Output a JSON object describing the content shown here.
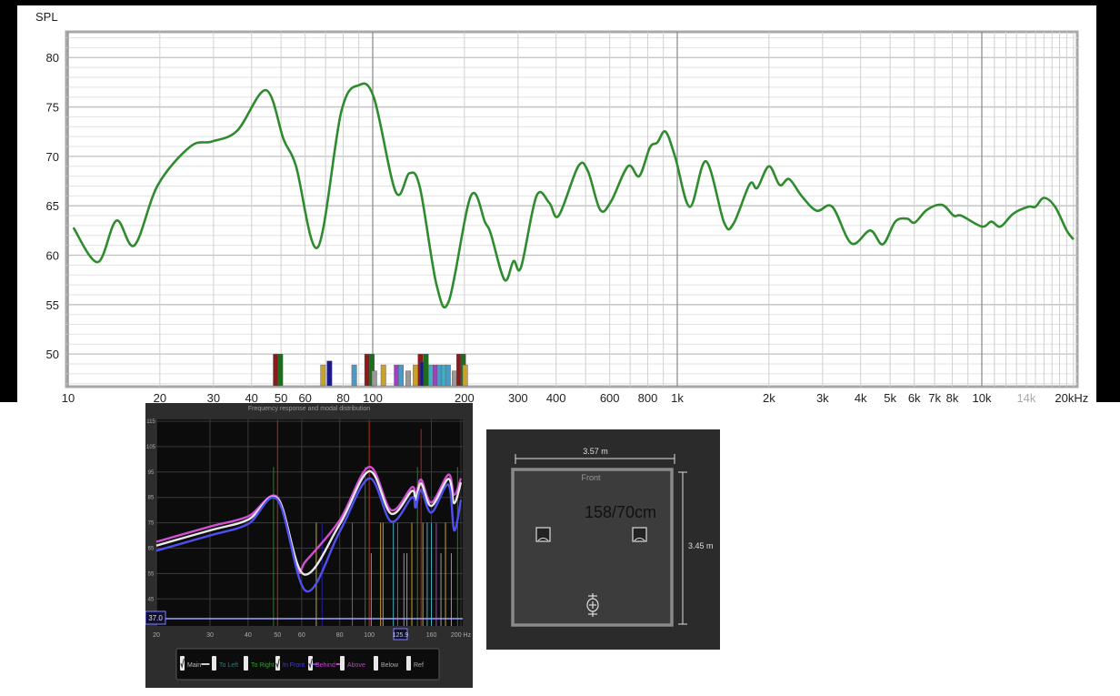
{
  "chart_data": [
    {
      "type": "line",
      "ylabel": "SPL",
      "x_scale": "log",
      "xlim": [
        10,
        20000
      ],
      "ylim": [
        46.7,
        82.6
      ],
      "grid": true,
      "y_ticks": [
        80,
        75,
        70,
        65,
        60,
        55,
        50
      ],
      "x_ticks": [
        {
          "v": 10,
          "label": "10"
        },
        {
          "v": 20,
          "label": "20"
        },
        {
          "v": 30,
          "label": "30"
        },
        {
          "v": 40,
          "label": "40"
        },
        {
          "v": 50,
          "label": "50"
        },
        {
          "v": 60,
          "label": "60"
        },
        {
          "v": 80,
          "label": "80"
        },
        {
          "v": 100,
          "label": "100"
        },
        {
          "v": 200,
          "label": "200"
        },
        {
          "v": 300,
          "label": "300"
        },
        {
          "v": 400,
          "label": "400"
        },
        {
          "v": 600,
          "label": "600"
        },
        {
          "v": 800,
          "label": "800"
        },
        {
          "v": 1000,
          "label": "1k"
        },
        {
          "v": 2000,
          "label": "2k"
        },
        {
          "v": 3000,
          "label": "3k"
        },
        {
          "v": 4000,
          "label": "4k"
        },
        {
          "v": 5000,
          "label": "5k"
        },
        {
          "v": 6000,
          "label": "6k"
        },
        {
          "v": 7000,
          "label": "7k"
        },
        {
          "v": 8000,
          "label": "8k"
        },
        {
          "v": 10000,
          "label": "10k"
        },
        {
          "v": 14000,
          "label": "14k",
          "muted": true
        },
        {
          "v": 20000,
          "label": "20kHz"
        }
      ],
      "line_color": "#2e8b2e",
      "series": [
        {
          "x": [
            10.4,
            12.5,
            14.4,
            16.5,
            19.7,
            25.2,
            29.6,
            35.9,
            44.6,
            51,
            56,
            66,
            78.8,
            90,
            101,
            119,
            132,
            143,
            162,
            178,
            210,
            234,
            244,
            271,
            290,
            307,
            345,
            380,
            408,
            473,
            509,
            558,
            605,
            689,
            750,
            813,
            860,
            915,
            985,
            1100,
            1243,
            1425,
            1530,
            1730,
            1830,
            2000,
            2170,
            2330,
            2560,
            2870,
            3230,
            3730,
            4300,
            4730,
            5200,
            5680,
            6020,
            6610,
            7400,
            8090,
            8570,
            10000,
            10750,
            11520,
            12680,
            14200,
            15000,
            16000,
            17400,
            19000,
            20000
          ],
          "y": [
            62.8,
            59.3,
            63.5,
            61,
            67.1,
            71,
            71.5,
            72.6,
            76.7,
            71.7,
            69,
            60.8,
            74.5,
            77.2,
            75.9,
            66.4,
            68.3,
            66.8,
            57,
            55.4,
            66,
            63.3,
            62.2,
            57.5,
            59.4,
            58.8,
            66,
            65.3,
            64,
            69,
            68.5,
            64.6,
            65.4,
            69,
            68,
            70.9,
            71.4,
            72.5,
            69.9,
            64.9,
            69.5,
            63.3,
            63.2,
            67.2,
            66.8,
            69,
            67.1,
            67.7,
            66,
            64.5,
            64.9,
            61.2,
            62.5,
            61.1,
            63.4,
            63.7,
            63.3,
            64.6,
            65.1,
            64,
            64,
            62.9,
            63.4,
            62.9,
            64.2,
            64.9,
            64.9,
            65.8,
            64.9,
            62.5,
            61.6
          ]
        }
      ],
      "mode_bars": [
        {
          "f": 48.1,
          "top": 50,
          "color": "#8b1a1a"
        },
        {
          "f": 49.8,
          "top": 50,
          "color": "#1f6b1f"
        },
        {
          "f": 68.8,
          "top": 48.9,
          "color": "#c8a22a"
        },
        {
          "f": 72.2,
          "top": 49.3,
          "color": "#1a1a8b"
        },
        {
          "f": 87.1,
          "top": 48.9,
          "color": "#4a9ac8"
        },
        {
          "f": 96,
          "top": 50,
          "color": "#8b1a1a"
        },
        {
          "f": 99.5,
          "top": 50,
          "color": "#1f6b1f"
        },
        {
          "f": 101.4,
          "top": 48.3,
          "color": "#999999"
        },
        {
          "f": 108.6,
          "top": 48.9,
          "color": "#c8a22a"
        },
        {
          "f": 120,
          "top": 48.9,
          "color": "#a040c0"
        },
        {
          "f": 124,
          "top": 48.9,
          "color": "#4a9ac8"
        },
        {
          "f": 131,
          "top": 48.3,
          "color": "#999999"
        },
        {
          "f": 138.5,
          "top": 48.9,
          "color": "#c8a22a"
        },
        {
          "f": 143.7,
          "top": 50,
          "color": "#8b1a1a"
        },
        {
          "f": 146,
          "top": 49.2,
          "color": "#1a1a8b"
        },
        {
          "f": 149.8,
          "top": 50,
          "color": "#1f6b1f"
        },
        {
          "f": 155.6,
          "top": 48.9,
          "color": "#40b0c0"
        },
        {
          "f": 161,
          "top": 48.9,
          "color": "#a040c0"
        },
        {
          "f": 166,
          "top": 48.9,
          "color": "#4a9ac8"
        },
        {
          "f": 172,
          "top": 48.9,
          "color": "#40b0c0"
        },
        {
          "f": 177,
          "top": 48.9,
          "color": "#4a9ac8"
        },
        {
          "f": 186,
          "top": 48.3,
          "color": "#999999"
        },
        {
          "f": 192.4,
          "top": 50,
          "color": "#8b1a1a"
        },
        {
          "f": 198.5,
          "top": 50,
          "color": "#1f6b1f"
        },
        {
          "f": 201.5,
          "top": 48.9,
          "color": "#c8a22a"
        }
      ]
    },
    {
      "type": "line",
      "title": "Frequency response and modal distribution",
      "x_scale": "log",
      "xlim": [
        20,
        200
      ],
      "ylim": [
        37.6,
        115
      ],
      "y_ticks": [
        115,
        105,
        95,
        85,
        75,
        65,
        55,
        45
      ],
      "x_ticks": [
        {
          "v": 20,
          "label": "20"
        },
        {
          "v": 30,
          "label": "30"
        },
        {
          "v": 40,
          "label": "40"
        },
        {
          "v": 50,
          "label": "50"
        },
        {
          "v": 60,
          "label": "60"
        },
        {
          "v": 80,
          "label": "80"
        },
        {
          "v": 100,
          "label": "100"
        },
        {
          "v": 160,
          "label": "160"
        },
        {
          "v": 200,
          "label": "200 Hz"
        }
      ],
      "cursor_x_label": "125.9",
      "cursor_y_label": "37.0",
      "series": [
        {
          "name": "Behind",
          "color": "#d050d0",
          "x": [
            20,
            30,
            40,
            50,
            58,
            62,
            80,
            100,
            118,
            138,
            142,
            148,
            160,
            182,
            190,
            200
          ],
          "y": [
            67.5,
            73.5,
            77.5,
            85,
            57,
            60,
            76,
            97,
            80,
            89,
            85.5,
            92,
            83,
            94,
            86,
            92.5
          ]
        },
        {
          "name": "Main",
          "color": "#e8e8e8",
          "x": [
            20,
            30,
            40,
            50,
            61,
            80,
            100,
            118,
            138,
            142,
            148,
            160,
            182,
            190,
            200
          ],
          "y": [
            66,
            72,
            76.2,
            84.5,
            54.7,
            74.4,
            95.3,
            78.6,
            87.5,
            84,
            90.5,
            81.6,
            92.3,
            82.7,
            90.9
          ]
        },
        {
          "name": "In Front",
          "color": "#5050f0",
          "x": [
            20,
            30,
            40,
            50,
            62,
            80,
            100,
            118,
            138,
            142,
            148,
            160,
            182,
            190,
            200
          ],
          "y": [
            64,
            70,
            74.5,
            84,
            48.1,
            71.5,
            92.5,
            75.5,
            85,
            81,
            88,
            79,
            90,
            72,
            84
          ]
        }
      ],
      "modal_lines": [
        {
          "f": 48.5,
          "top": 97,
          "color": "#2f7a2f"
        },
        {
          "f": 50,
          "top": 115,
          "color": "#b02020"
        },
        {
          "f": 67,
          "top": 75,
          "color": "#c8a22a"
        },
        {
          "f": 70,
          "top": 75,
          "color": "#2020a0"
        },
        {
          "f": 88,
          "top": 75,
          "color": "#a040c0"
        },
        {
          "f": 97,
          "top": 97,
          "color": "#2f7a2f"
        },
        {
          "f": 100,
          "top": 115,
          "color": "#b02020"
        },
        {
          "f": 101.5,
          "top": 63,
          "color": "#999999"
        },
        {
          "f": 109,
          "top": 75,
          "color": "#c8a22a"
        },
        {
          "f": 111,
          "top": 75,
          "color": "#c8a22a"
        },
        {
          "f": 120,
          "top": 75,
          "color": "#40b0c0"
        },
        {
          "f": 124,
          "top": 75,
          "color": "#a040c0"
        },
        {
          "f": 130,
          "top": 63,
          "color": "#999999"
        },
        {
          "f": 133,
          "top": 63,
          "color": "#999999"
        },
        {
          "f": 138,
          "top": 75,
          "color": "#c8a22a"
        },
        {
          "f": 144,
          "top": 97,
          "color": "#2f7a2f"
        },
        {
          "f": 148,
          "top": 112,
          "color": "#b02020"
        },
        {
          "f": 150,
          "top": 75,
          "color": "#c8a22a"
        },
        {
          "f": 155,
          "top": 75,
          "color": "#40b0c0"
        },
        {
          "f": 160,
          "top": 75,
          "color": "#40b0c0"
        },
        {
          "f": 166,
          "top": 75,
          "color": "#a040c0"
        },
        {
          "f": 172,
          "top": 63,
          "color": "#999999"
        },
        {
          "f": 178,
          "top": 75,
          "color": "#c8a22a"
        },
        {
          "f": 186,
          "top": 63,
          "color": "#999999"
        },
        {
          "f": 195,
          "top": 97,
          "color": "#2f7a2f"
        }
      ],
      "legend": [
        {
          "label": "Main",
          "checked": true,
          "color": "#e8e8e8",
          "text_color": "#bbbbbb"
        },
        {
          "label": "To Left",
          "checked": false,
          "text_color": "#208080"
        },
        {
          "label": "To Right",
          "checked": false,
          "text_color": "#30a030"
        },
        {
          "label": "In Front",
          "checked": true,
          "color": "#5050f0",
          "text_color": "#4040e0"
        },
        {
          "label": "Behind",
          "checked": true,
          "color": "#d050d0",
          "text_color": "#c040c0"
        },
        {
          "label": "Above",
          "checked": false,
          "text_color": "#c040c0"
        },
        {
          "label": "Below",
          "checked": false,
          "text_color": "#aaaaaa"
        },
        {
          "label": "Ref",
          "checked": false,
          "text_color": "#aaaaaa"
        }
      ]
    }
  ],
  "room": {
    "width_label": "3.57 m",
    "depth_label": "3.45 m",
    "front_label": "Front",
    "annotation": "158/70cm"
  }
}
